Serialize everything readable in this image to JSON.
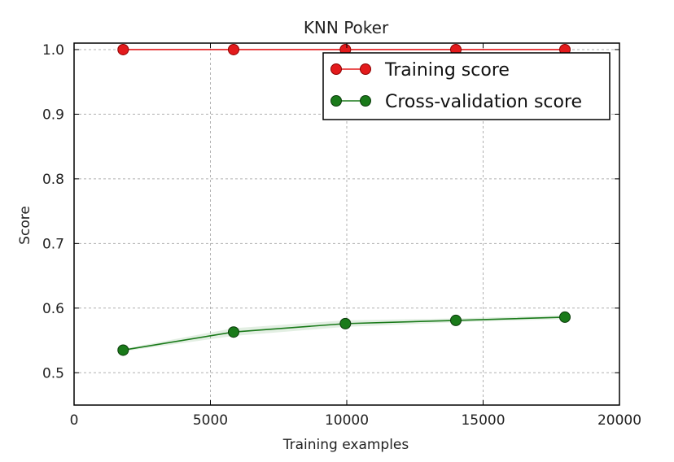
{
  "chart_data": {
    "type": "line",
    "title": "KNN Poker",
    "xlabel": "Training examples",
    "ylabel": "Score",
    "xlim": [
      0,
      20000
    ],
    "ylim": [
      0.45,
      1.01
    ],
    "xticks": [
      0,
      5000,
      10000,
      15000,
      20000
    ],
    "xtick_labels": [
      "0",
      "5000",
      "10000",
      "15000",
      "20000"
    ],
    "yticks": [
      0.5,
      0.6,
      0.7,
      0.8,
      0.9,
      1.0
    ],
    "ytick_labels": [
      "0.5",
      "0.6",
      "0.7",
      "0.8",
      "0.9",
      "1.0"
    ],
    "grid": true,
    "legend_position": "top-right",
    "x": [
      1800,
      5850,
      9950,
      14000,
      18000
    ],
    "series": [
      {
        "name": "Training score",
        "color": "#e31a1c",
        "values": [
          1.0,
          1.0,
          1.0,
          1.0,
          1.0
        ],
        "band": [
          [
            1.0,
            1.0
          ],
          [
            1.0,
            1.0
          ],
          [
            1.0,
            1.0
          ],
          [
            1.0,
            1.0
          ],
          [
            1.0,
            1.0
          ]
        ]
      },
      {
        "name": "Cross-validation score",
        "color": "#1a7a1a",
        "values": [
          0.535,
          0.563,
          0.576,
          0.581,
          0.586
        ],
        "band": [
          [
            0.533,
            0.537
          ],
          [
            0.557,
            0.569
          ],
          [
            0.571,
            0.581
          ],
          [
            0.578,
            0.584
          ],
          [
            0.583,
            0.589
          ]
        ]
      }
    ]
  }
}
